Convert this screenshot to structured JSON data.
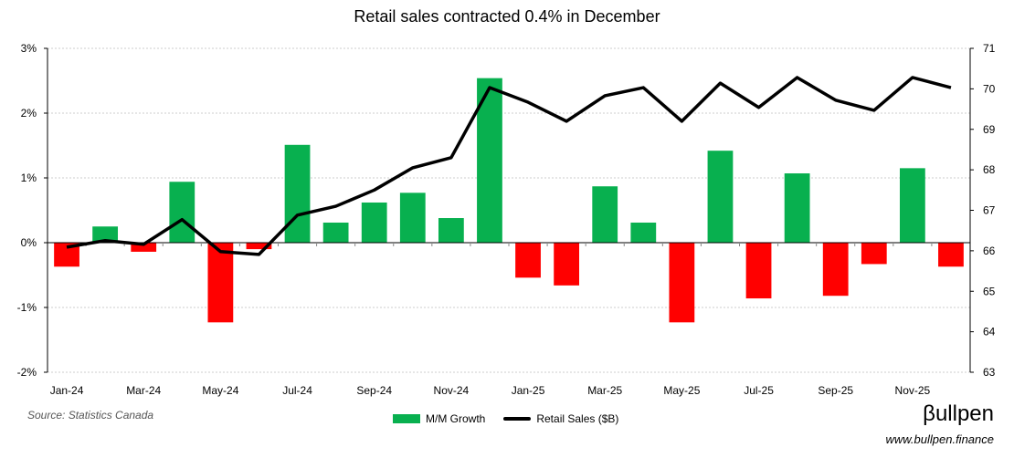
{
  "chart_data": {
    "type": "bar+line",
    "title": "Retail sales contracted 0.4% in December",
    "categories": [
      "Jan-24",
      "Feb-24",
      "Mar-24",
      "Apr-24",
      "May-24",
      "Jun-24",
      "Jul-24",
      "Aug-24",
      "Sep-24",
      "Oct-24",
      "Nov-24",
      "Dec-24",
      "Jan-25",
      "Feb-25",
      "Mar-25",
      "Apr-25",
      "May-25",
      "Jun-25",
      "Jul-25",
      "Aug-25",
      "Sep-25",
      "Oct-25",
      "Nov-25",
      "Dec-25"
    ],
    "x_tick_labels": [
      "Jan-24",
      "Mar-24",
      "May-24",
      "Jul-24",
      "Sep-24",
      "Nov-24",
      "Jan-25",
      "Mar-25",
      "May-25",
      "Jul-25",
      "Sep-25",
      "Nov-25"
    ],
    "series": [
      {
        "name": "M/M Growth",
        "type": "bar",
        "axis": "left",
        "unit": "%",
        "color_positive": "#08b04f",
        "color_negative": "#ff0000",
        "values": [
          -0.37,
          0.25,
          -0.14,
          0.94,
          -1.23,
          -0.1,
          1.51,
          0.31,
          0.62,
          0.77,
          0.38,
          2.54,
          -0.54,
          -0.66,
          0.87,
          0.31,
          -1.23,
          1.42,
          -0.86,
          1.07,
          -0.82,
          -0.33,
          1.15,
          -0.37
        ]
      },
      {
        "name": "Retail Sales ($B)",
        "type": "line",
        "axis": "right",
        "color": "#000000",
        "values": [
          66.09,
          66.25,
          66.16,
          66.77,
          65.98,
          65.91,
          66.88,
          67.1,
          67.5,
          68.05,
          68.3,
          70.03,
          69.67,
          69.2,
          69.83,
          70.03,
          69.2,
          70.14,
          69.54,
          70.28,
          69.72,
          69.47,
          70.28,
          70.03
        ]
      }
    ],
    "left_axis": {
      "ylim": [
        -2,
        3
      ],
      "ticks": [
        "-2%",
        "-1%",
        "0%",
        "1%",
        "2%",
        "3%"
      ]
    },
    "right_axis": {
      "ylim": [
        63,
        71
      ],
      "ticks": [
        "63",
        "64",
        "65",
        "66",
        "67",
        "68",
        "69",
        "70",
        "71"
      ]
    },
    "grid": true,
    "legend_placement": "bottom"
  },
  "footer": {
    "source": "Source: Statistics Canada",
    "logo": "βullpen",
    "url": "www.bullpen.finance"
  }
}
